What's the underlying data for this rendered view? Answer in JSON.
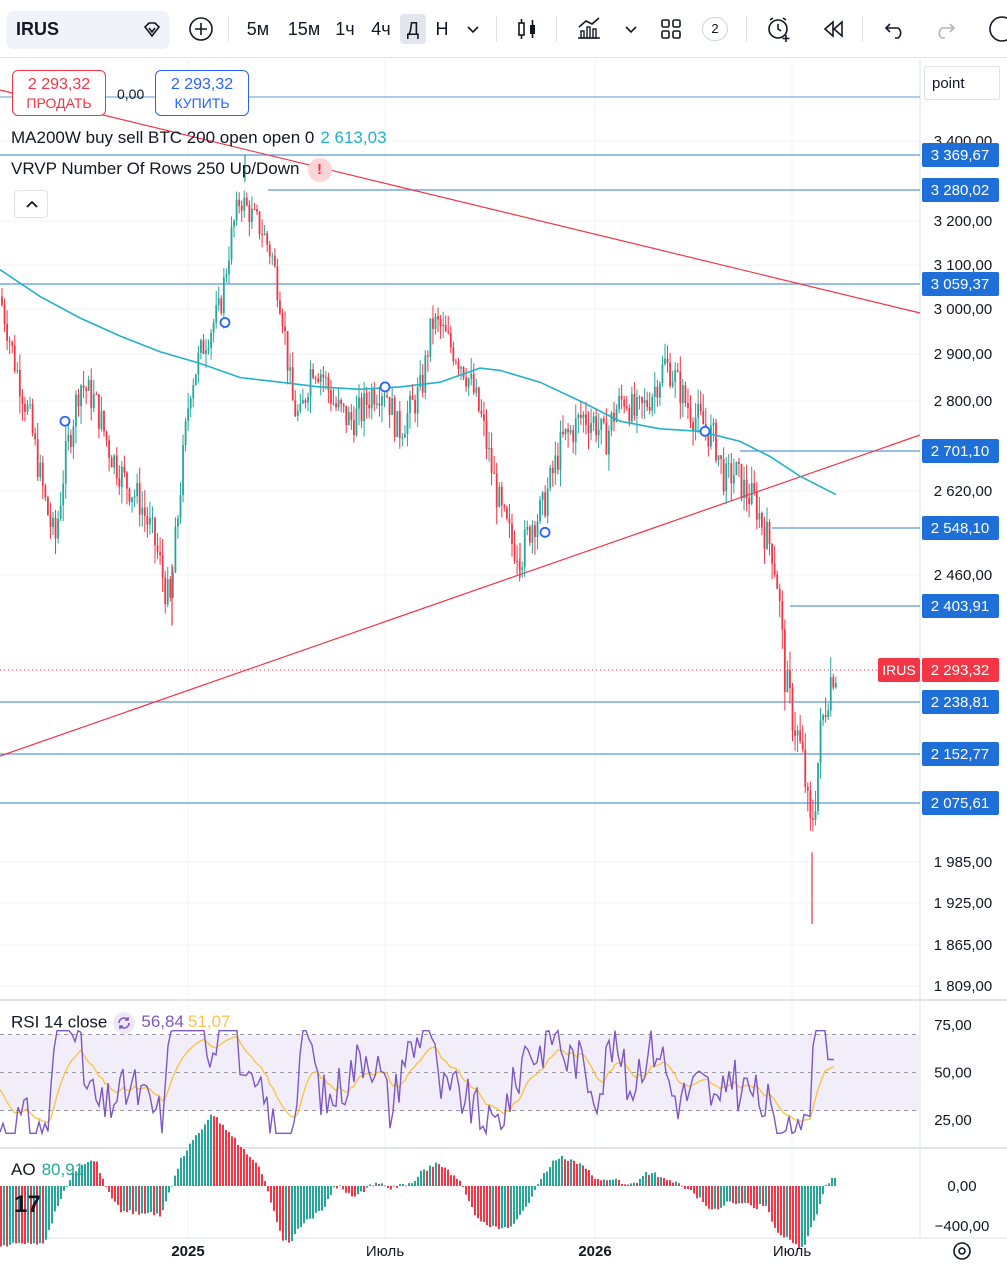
{
  "toolbar": {
    "symbol": "IRUS",
    "intervals": [
      "5м",
      "15м",
      "1ч",
      "4ч",
      "Д",
      "Н"
    ],
    "active_interval": "Д",
    "layouts_count": "2"
  },
  "trade": {
    "sell_price": "2 293,32",
    "sell_label": "ПРОДАТЬ",
    "spread": "0,00",
    "buy_price": "2 293,32",
    "buy_label": "КУПИТЬ"
  },
  "legend": {
    "ma_text": "MA200W buy sell BTC 200 open open 0",
    "ma_value": "2 613,03",
    "vrvp_text": "VRVP Number Of Rows 250 Up/Down",
    "vrvp_warning": "!"
  },
  "scale_mode": "point",
  "rsi_legend": {
    "label": "RSI 14 close",
    "value": "56,84",
    "ma_value": "51,07"
  },
  "ao_legend": {
    "label": "AO",
    "value": "80,91"
  },
  "colors": {
    "up": "#26a69a",
    "down": "#f23645",
    "ma": "#22b3c8",
    "horizontal_line": "#5b9bd5",
    "trendline": "#f23645",
    "rsi": "#7e57c2",
    "rsi_ma": "#f7c548",
    "price_tag": "#1e6fd8"
  },
  "chart_data": [
    {
      "type": "candlestick",
      "symbol": "IRUS",
      "title": "",
      "x_ticks": [
        "2025",
        "Июль",
        "2026",
        "Июль"
      ],
      "y_ticks": [
        1809,
        1865,
        1925,
        1985,
        2460,
        2620,
        2800,
        2900,
        3000,
        3100,
        3200,
        3400
      ],
      "y_tick_labels": [
        "1 809,00",
        "1 865,00",
        "1 925,00",
        "1 985,00",
        "2 460,00",
        "2 620,00",
        "2 800,00",
        "2 900,00",
        "3 000,00",
        "3 100,00",
        "3 200,00",
        "3 400,00"
      ],
      "ylim": [
        1809,
        3400
      ],
      "last_price": 2293.32,
      "last_price_label": "2 293,32",
      "horizontal_levels": [
        {
          "value": 3369.67,
          "label": "3 369,67"
        },
        {
          "value": 3280.02,
          "label": "3 280,02"
        },
        {
          "value": 3059.37,
          "label": "3 059,37"
        },
        {
          "value": 2701.1,
          "label": "2 701,10"
        },
        {
          "value": 2548.1,
          "label": "2 548,10"
        },
        {
          "value": 2403.91,
          "label": "2 403,91"
        },
        {
          "value": 2238.81,
          "label": "2 238,81"
        },
        {
          "value": 2152.77,
          "label": "2 152,77"
        },
        {
          "value": 2075.61,
          "label": "2 075,61"
        }
      ],
      "moving_average": {
        "name": "MA200W",
        "last_value": 2613.03
      },
      "grid": true
    },
    {
      "type": "line",
      "indicator": "RSI 14 close",
      "ylim": [
        0,
        100
      ],
      "y_ticks": [
        25,
        50,
        75
      ],
      "y_tick_labels": [
        "25,00",
        "50,00",
        "75,00"
      ],
      "band": [
        30,
        70
      ],
      "last_value": 56.84,
      "ma_last_value": 51.07
    },
    {
      "type": "bar",
      "indicator": "AO",
      "y_ticks": [
        0,
        -400
      ],
      "y_tick_labels": [
        "0,00",
        "−400,00"
      ],
      "last_value": 80.91
    }
  ]
}
